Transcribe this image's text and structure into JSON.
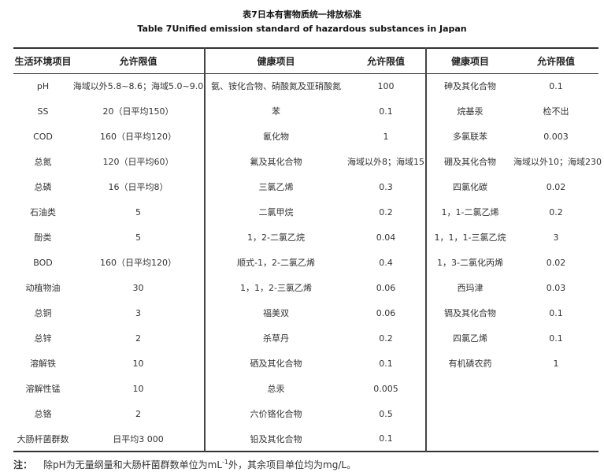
{
  "title_cn": "表7日本有害物质统一排放标准",
  "title_en": "Table 7Unified emission standard of hazardous substances in Japan",
  "headers": [
    "生活环境项目",
    "允许限值",
    "健康项目",
    "允许限值",
    "健康项目",
    "允许限值"
  ],
  "rows": [
    [
      "pH",
      "海域以外5.8~8.6；海域5.0~9.0",
      "氨、铵化合物、硝酸氮及亚硝酸氮",
      "100",
      "砷及其化合物",
      "0.1"
    ],
    [
      "SS",
      "20（日平均150）",
      "苯",
      "0.1",
      "烷基汞",
      "检不出"
    ],
    [
      "COD",
      "160（日平均120）",
      "氰化物",
      "1",
      "多氯联苯",
      "0.003"
    ],
    [
      "总氮",
      "120（日平均60）",
      "氟及其化合物",
      "海域以外8；海域15",
      "硼及其化合物",
      "海域以外10；海域230"
    ],
    [
      "总磷",
      "16（日平均8）",
      "三氯乙烯",
      "0.3",
      "四氯化碳",
      "0.02"
    ],
    [
      "石油类",
      "5",
      "二氯甲烷",
      "0.2",
      "1，1-二氯乙烯",
      "0.2"
    ],
    [
      "酚类",
      "5",
      "1，2-二氯乙烷",
      "0.04",
      "1，1，1-三氯乙烷",
      "3"
    ],
    [
      "BOD",
      "160（日平均120）",
      "顺式-1，2-二氯乙烯",
      "0.4",
      "1，3-二氯化丙烯",
      "0.02"
    ],
    [
      "动植物油",
      "30",
      "1，1，2-三氯乙烯",
      "0.06",
      "西玛津",
      "0.03"
    ],
    [
      "总铜",
      "3",
      "福美双",
      "0.06",
      "镉及其化合物",
      "0.1"
    ],
    [
      "总锌",
      "2",
      "杀草丹",
      "0.2",
      "四氯乙烯",
      "0.1"
    ],
    [
      "溶解铁",
      "10",
      "硒及其化合物",
      "0.1",
      "有机磷农药",
      "1"
    ],
    [
      "溶解性锰",
      "10",
      "总汞",
      "0.005",
      "",
      ""
    ],
    [
      "总铬",
      "2",
      "六价铬化合物",
      "0.5",
      "",
      ""
    ],
    [
      "大肠杆菌群数",
      "日平均3 000",
      "铅及其化合物",
      "0.1",
      "",
      ""
    ]
  ],
  "note": {
    "label": "注：",
    "text_before": "除pH为无量纲量和大肠杆菌群数单位为mL",
    "superscript": "-1",
    "text_after": "外，其余项目单位均为mg/L。"
  }
}
